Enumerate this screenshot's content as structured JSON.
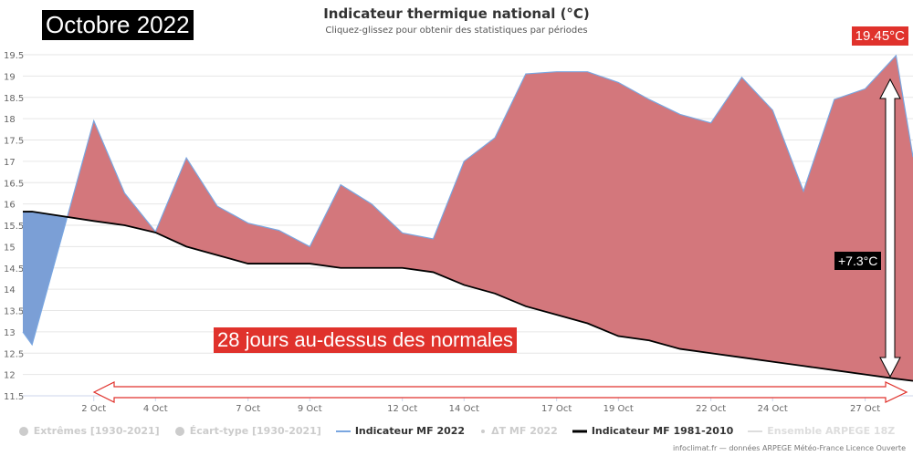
{
  "header": {
    "title": "Indicateur thermique national (°C)",
    "subtitle": "Cliquez-glissez pour obtenir des statistiques par périodes",
    "month_label": "Octobre 2022",
    "max_label": "19.45°C",
    "delta_label": "+7.3°C",
    "days_above_label": "28 jours au-dessus des normales"
  },
  "legend": [
    {
      "label": "Extrêmes [1930-2021]",
      "color": "#cccccc",
      "symbol": "circle",
      "active": false
    },
    {
      "label": "Écart-type [1930-2021]",
      "color": "#cccccc",
      "symbol": "circle",
      "active": false
    },
    {
      "label": "Indicateur MF 2022",
      "color": "#7aa6e0",
      "symbol": "line",
      "active": true
    },
    {
      "label": "ΔT MF 2022",
      "color": "#cccccc",
      "symbol": "dot",
      "active": false
    },
    {
      "label": "Indicateur MF 1981-2010",
      "color": "#000000",
      "symbol": "line",
      "active": true
    },
    {
      "label": "Ensemble ARPEGE 18Z",
      "color": "#dddddd",
      "symbol": "line",
      "active": false
    }
  ],
  "credit": "infoclimat.fr — données ARPEGE Météo-France Licence Ouverte",
  "chart_data": {
    "type": "area",
    "title": "Indicateur thermique national (°C)",
    "xlabel": "",
    "ylabel": "",
    "xlim": [
      -0.3,
      28.55
    ],
    "ylim": [
      11.5,
      19.5
    ],
    "grid": true,
    "yticks": [
      "11.5",
      "12",
      "12.5",
      "13",
      "13.5",
      "14",
      "14.5",
      "15",
      "15.5",
      "16",
      "16.5",
      "17",
      "17.5",
      "18",
      "18.5",
      "19",
      "19.5"
    ],
    "xticks": [
      {
        "day": 2,
        "label": "2 Oct"
      },
      {
        "day": 4,
        "label": "4 Oct"
      },
      {
        "day": 7,
        "label": "7 Oct"
      },
      {
        "day": 9,
        "label": "9 Oct"
      },
      {
        "day": 12,
        "label": "12 Oct"
      },
      {
        "day": 14,
        "label": "14 Oct"
      },
      {
        "day": 17,
        "label": "17 Oct"
      },
      {
        "day": 19,
        "label": "19 Oct"
      },
      {
        "day": 22,
        "label": "22 Oct"
      },
      {
        "day": 24,
        "label": "24 Oct"
      },
      {
        "day": 27,
        "label": "27 Oct"
      }
    ],
    "series": [
      {
        "name": "Indicateur MF 2022",
        "color": "#7aa6e0",
        "x": [
          -0.3,
          0,
          2,
          3,
          4,
          5,
          6,
          7,
          8,
          9,
          10,
          11,
          12,
          13,
          14,
          15,
          16,
          17,
          18,
          19,
          20,
          21,
          22,
          23,
          24,
          25,
          26,
          27,
          28,
          28.55
        ],
        "y": [
          13.0,
          12.7,
          17.95,
          16.25,
          15.35,
          17.08,
          15.95,
          15.55,
          15.38,
          15.0,
          16.45,
          16.0,
          15.32,
          15.18,
          17.0,
          17.55,
          19.05,
          19.1,
          19.1,
          18.85,
          18.45,
          18.1,
          17.9,
          18.97,
          18.2,
          16.3,
          18.45,
          18.7,
          19.48,
          17.1
        ]
      },
      {
        "name": "Indicateur MF 1981-2010",
        "color": "#000000",
        "x": [
          -0.3,
          0,
          2,
          3,
          4,
          5,
          6,
          7,
          8,
          9,
          10,
          11,
          12,
          13,
          14,
          15,
          16,
          17,
          18,
          19,
          20,
          21,
          22,
          23,
          24,
          25,
          26,
          27,
          28,
          28.55
        ],
        "y": [
          15.82,
          15.82,
          15.6,
          15.5,
          15.33,
          15.0,
          14.8,
          14.6,
          14.6,
          14.6,
          14.5,
          14.5,
          14.5,
          14.4,
          14.1,
          13.9,
          13.6,
          13.4,
          13.2,
          12.9,
          12.8,
          12.6,
          12.5,
          12.4,
          12.3,
          12.2,
          12.1,
          12.0,
          11.9,
          11.85
        ]
      }
    ],
    "fill_above_color": "#d3777c",
    "fill_below_color": "#7b9fd6"
  }
}
